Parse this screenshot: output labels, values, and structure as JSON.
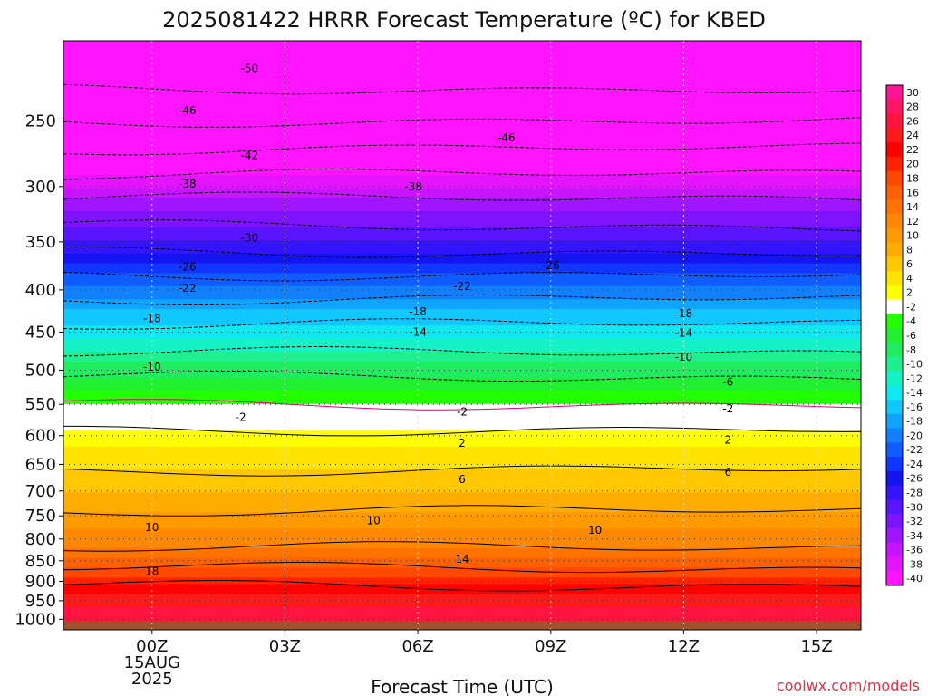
{
  "chart_data": {
    "type": "heatmap",
    "title": "2025081422 HRRR Forecast Temperature (ºC) for KBED",
    "xlabel": "Forecast Time (UTC)",
    "ylabel": "",
    "credit": "coolwx.com/models",
    "x_ticks": [
      "00Z",
      "03Z",
      "06Z",
      "09Z",
      "12Z",
      "15Z"
    ],
    "x_tick_values": [
      0,
      3,
      6,
      9,
      12,
      15
    ],
    "x_date_label": [
      "15AUG",
      "2025"
    ],
    "xlim": [
      -2,
      16
    ],
    "y_ticks": [
      "250",
      "300",
      "350",
      "400",
      "450",
      "500",
      "550",
      "600",
      "650",
      "700",
      "750",
      "800",
      "850",
      "900",
      "950",
      "1000"
    ],
    "y_tick_values": [
      250,
      300,
      350,
      400,
      450,
      500,
      550,
      600,
      650,
      700,
      750,
      800,
      850,
      900,
      950,
      1000
    ],
    "ylim": [
      1030,
      200
    ],
    "y_scale": "log (pressure, hPa)",
    "grid": true,
    "colorbar": {
      "labels": [
        "30",
        "28",
        "26",
        "24",
        "22",
        "20",
        "18",
        "16",
        "14",
        "12",
        "10",
        "8",
        "6",
        "4",
        "2",
        "-2",
        "-4",
        "-6",
        "-8",
        "-10",
        "-12",
        "-14",
        "-16",
        "-18",
        "-20",
        "-22",
        "-24",
        "-26",
        "-28",
        "-30",
        "-32",
        "-34",
        "-36",
        "-38",
        "-40"
      ],
      "colors": [
        "#ff1493",
        "#ff1466",
        "#ff1440",
        "#ff1a1a",
        "#ff0000",
        "#ff2400",
        "#ff4800",
        "#ff6000",
        "#ff7400",
        "#ff8800",
        "#ff9a00",
        "#ffac00",
        "#ffc800",
        "#ffe400",
        "#ffff00",
        "#ffffff",
        "#22ff00",
        "#20f030",
        "#20ec60",
        "#1ef090",
        "#16f2c8",
        "#10e8f0",
        "#10c8ff",
        "#10a4ff",
        "#1080ff",
        "#105cff",
        "#1036ff",
        "#1414f0",
        "#3414ff",
        "#5a14ff",
        "#7e14ff",
        "#a014ff",
        "#c814ff",
        "#e414ff",
        "#ff14ff"
      ]
    },
    "temperature_profile": {
      "pressure": [
        200,
        240,
        280,
        320,
        350,
        370,
        390,
        410,
        430,
        450,
        470,
        490,
        510,
        530,
        545,
        555,
        575,
        590,
        600,
        640,
        700,
        760,
        820,
        880,
        930,
        980,
        1030
      ],
      "temp": [
        -55,
        -48,
        -40,
        -32,
        -28,
        -24,
        -21,
        -18,
        -15,
        -13,
        -11,
        -8,
        -6,
        -4,
        -3,
        -1,
        1,
        2,
        3,
        5,
        8,
        11,
        14,
        19,
        24,
        27,
        28
      ]
    },
    "contour_labels": [
      {
        "text": "-50",
        "x": 2.2,
        "p": 216
      },
      {
        "text": "-46",
        "x": 0.8,
        "p": 243
      },
      {
        "text": "-46",
        "x": 8.0,
        "p": 262
      },
      {
        "text": "-42",
        "x": 2.2,
        "p": 275
      },
      {
        "text": "-38",
        "x": 0.8,
        "p": 298
      },
      {
        "text": "-38",
        "x": 5.9,
        "p": 300
      },
      {
        "text": "-30",
        "x": 2.2,
        "p": 346
      },
      {
        "text": "-26",
        "x": 0.8,
        "p": 375
      },
      {
        "text": "-26",
        "x": 9.0,
        "p": 374
      },
      {
        "text": "-22",
        "x": 0.8,
        "p": 398
      },
      {
        "text": "-22",
        "x": 7.0,
        "p": 396
      },
      {
        "text": "-18",
        "x": 0.0,
        "p": 433
      },
      {
        "text": "-18",
        "x": 6.0,
        "p": 425
      },
      {
        "text": "-18",
        "x": 12.0,
        "p": 427
      },
      {
        "text": "-14",
        "x": 6.0,
        "p": 450
      },
      {
        "text": "-14",
        "x": 12.0,
        "p": 451
      },
      {
        "text": "-10",
        "x": 0.0,
        "p": 496
      },
      {
        "text": "-10",
        "x": 12.0,
        "p": 482
      },
      {
        "text": "-6",
        "x": 13.0,
        "p": 517
      },
      {
        "text": "-2",
        "x": 2.0,
        "p": 570
      },
      {
        "text": "-2",
        "x": 7.0,
        "p": 562
      },
      {
        "text": "-2",
        "x": 13.0,
        "p": 557
      },
      {
        "text": "2",
        "x": 7.0,
        "p": 613
      },
      {
        "text": "2",
        "x": 13.0,
        "p": 607
      },
      {
        "text": "6",
        "x": 7.0,
        "p": 678
      },
      {
        "text": "6",
        "x": 13.0,
        "p": 664
      },
      {
        "text": "10",
        "x": 0.0,
        "p": 775
      },
      {
        "text": "10",
        "x": 5.0,
        "p": 760
      },
      {
        "text": "10",
        "x": 10.0,
        "p": 781
      },
      {
        "text": "14",
        "x": 7.0,
        "p": 846
      },
      {
        "text": "18",
        "x": 0.0,
        "p": 875
      }
    ]
  }
}
